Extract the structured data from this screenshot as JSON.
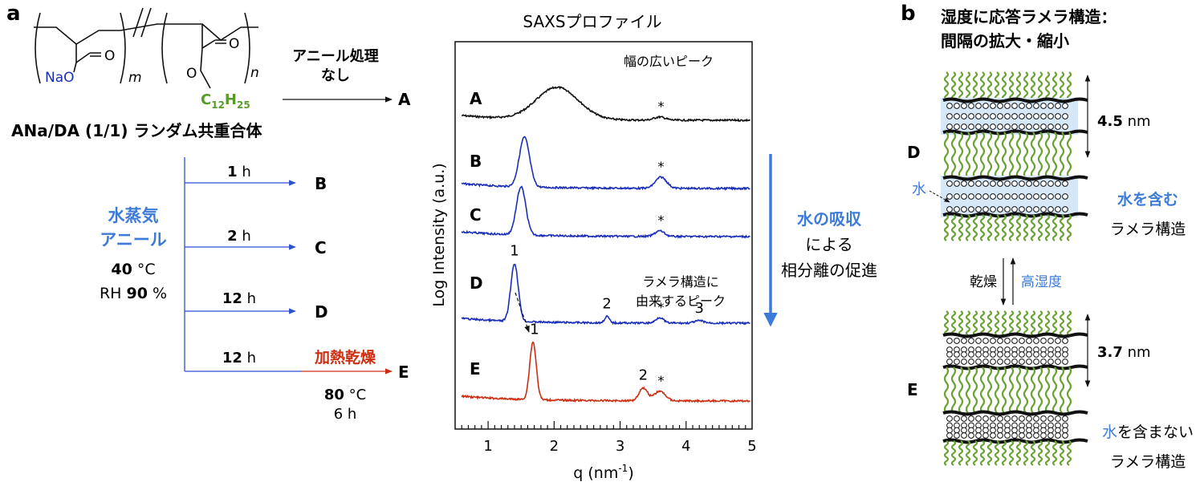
{
  "panel_a": {
    "label": "a",
    "structure": {
      "na_label": "NaO",
      "o_double": "O",
      "o_ester": "O",
      "m": "m",
      "n": "n",
      "c12": "C",
      "c12_sub": "12",
      "h25": "H",
      "h25_sub": "25"
    },
    "copolymer_name": "ANa/DA (1/1) ランダム共重合体",
    "anneal_none_line1": "アニール処理",
    "anneal_none_line2": "なし",
    "vapor_line1": "水蒸気",
    "vapor_line2": "アニール",
    "temp_value": "40",
    "temp_unit": " °C",
    "rh_prefix": "RH ",
    "rh_value": "90",
    "rh_unit": " %",
    "branches": [
      {
        "time_value": "",
        "time_unit": "",
        "sample": "A"
      },
      {
        "time_value": "1",
        "time_unit": " h",
        "sample": "B"
      },
      {
        "time_value": "2",
        "time_unit": " h",
        "sample": "C"
      },
      {
        "time_value": "12",
        "time_unit": " h",
        "sample": "D"
      },
      {
        "time_value": "12",
        "time_unit": " h",
        "sample": "E"
      }
    ],
    "heat_dry": "加熱乾燥",
    "heat_temp_value": "80",
    "heat_temp_unit": " °C",
    "heat_time": "6 h"
  },
  "chart_data": {
    "type": "line",
    "title": "SAXSプロファイル",
    "xlabel": "q (nm",
    "xlabel_sup": "-1",
    "xlabel_close": ")",
    "ylabel": "Log Intensity (a.u.)",
    "xlim": [
      0.5,
      5.0
    ],
    "x_ticks": [
      1,
      2,
      3,
      4,
      5
    ],
    "log_scale_y": true,
    "grid": false,
    "series": [
      {
        "name": "A",
        "color": "#111111",
        "offset": 0.0,
        "peaks": [
          {
            "q": 2.05,
            "h": 40,
            "w": 0.45
          },
          {
            "q": 3.6,
            "h": 4,
            "w": 0.12
          }
        ]
      },
      {
        "name": "B",
        "color": "#1a2fb8",
        "offset": 1.0,
        "peaks": [
          {
            "q": 1.55,
            "h": 62,
            "w": 0.11
          },
          {
            "q": 3.62,
            "h": 14,
            "w": 0.12
          }
        ]
      },
      {
        "name": "C",
        "color": "#1a2fb8",
        "offset": 2.0,
        "peaks": [
          {
            "q": 1.5,
            "h": 60,
            "w": 0.1
          },
          {
            "q": 3.6,
            "h": 7,
            "w": 0.1
          }
        ]
      },
      {
        "name": "D",
        "color": "#1a2fb8",
        "offset": 3.0,
        "peaks": [
          {
            "q": 1.4,
            "h": 72,
            "w": 0.08
          },
          {
            "q": 2.8,
            "h": 8,
            "w": 0.05
          },
          {
            "q": 3.6,
            "h": 7,
            "w": 0.08
          },
          {
            "q": 4.2,
            "h": 3,
            "w": 0.1
          }
        ]
      },
      {
        "name": "E",
        "color": "#cc2e12",
        "offset": 4.0,
        "peaks": [
          {
            "q": 1.68,
            "h": 72,
            "w": 0.07
          },
          {
            "q": 3.35,
            "h": 16,
            "w": 0.09
          },
          {
            "q": 3.6,
            "h": 12,
            "w": 0.12
          }
        ]
      }
    ],
    "asterisks": [
      {
        "series": "A",
        "q": 3.62,
        "text": "*"
      },
      {
        "series": "B",
        "q": 3.62,
        "text": "*"
      },
      {
        "series": "C",
        "q": 3.62,
        "text": "*"
      },
      {
        "series": "D",
        "q": 3.62,
        "text": "*"
      },
      {
        "series": "E",
        "q": 3.62,
        "text": "*"
      }
    ],
    "peak_order_labels": [
      {
        "series": "D",
        "q": 1.4,
        "text": "1"
      },
      {
        "series": "D",
        "q": 2.8,
        "text": "2"
      },
      {
        "series": "D",
        "q": 4.2,
        "text": "3"
      },
      {
        "series": "E",
        "q": 1.68,
        "text": "1"
      },
      {
        "series": "E",
        "q": 3.35,
        "text": "2"
      }
    ],
    "annotations": {
      "broad_peak": "幅の広いピーク",
      "lamellar_peak_line1": "ラメラ構造に",
      "lamellar_peak_line2": "由来するピーク"
    }
  },
  "arrow_text": {
    "line1": "水の吸収",
    "line2": "による",
    "line3": "相分離の促進",
    "color": "#3d7bd9"
  },
  "panel_b": {
    "label": "b",
    "title_line1": "湿度に応答ラメラ構造：",
    "title_line2": "間隔の拡大・縮小",
    "d_label": "D",
    "e_label": "E",
    "d_spacing_value": "4.5",
    "d_spacing_unit": " nm",
    "e_spacing_value": "3.7",
    "e_spacing_unit": " nm",
    "water_label": "水",
    "with_water_line1": "水を含む",
    "with_water_line2": "ラメラ構造",
    "no_water_line1_blue": "水",
    "no_water_line1_rest": "を含まない",
    "no_water_line2": "ラメラ構造",
    "dry_label": "乾燥",
    "humid_label": "高湿度"
  }
}
